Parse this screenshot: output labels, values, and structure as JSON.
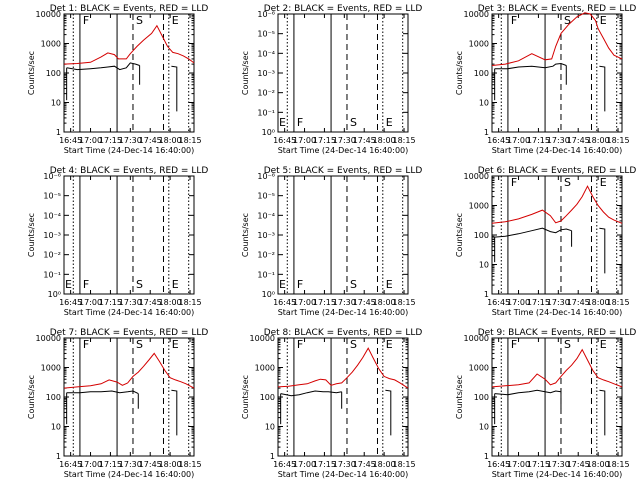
{
  "colors": {
    "events": "#000000",
    "lld": "#d40000",
    "axes": "#000000",
    "background": "#ffffff"
  },
  "xlabel": "Start Time (24-Dec-14 16:40:00)",
  "ylabel": "Counts/sec",
  "x_tick_labels": [
    "16:45",
    "17:00",
    "17:15",
    "17:30",
    "17:45",
    "18:00",
    "18:15"
  ],
  "x_range_minutes": [
    0,
    98
  ],
  "x_ticks_minutes": [
    5,
    20,
    35,
    50,
    65,
    80,
    95
  ],
  "ylim_log": [
    1,
    10000
  ],
  "y_ticks_log": [
    "1",
    "10",
    "100",
    "1000",
    "10000"
  ],
  "y_ticks_empty": [
    "10⁰",
    "10⁻¹",
    "10⁻²",
    "10⁻³",
    "10⁻⁴",
    "10⁻⁵",
    "10⁻⁶"
  ],
  "markers": [
    {
      "minute": 7,
      "style": "dotted",
      "label": ""
    },
    {
      "minute": 12,
      "style": "solid",
      "label": "F"
    },
    {
      "minute": 40,
      "style": "solid",
      "label": ""
    },
    {
      "minute": 52,
      "style": "dashed",
      "label": "S"
    },
    {
      "minute": 75,
      "style": "dashed",
      "label": ""
    },
    {
      "minute": 79,
      "style": "dotted",
      "label": "E"
    },
    {
      "minute": 94,
      "style": "dotted",
      "label": ""
    }
  ],
  "chart_data": [
    {
      "title": "Det 1: BLACK = Events, RED = LLD",
      "type": "line",
      "empty": false,
      "lld_x": [
        0,
        10,
        20,
        28,
        33,
        38,
        41,
        47,
        50,
        55,
        60,
        66,
        70,
        74,
        78,
        82,
        86,
        90,
        94,
        98
      ],
      "lld_y": [
        200,
        210,
        230,
        350,
        480,
        420,
        300,
        300,
        450,
        800,
        1300,
        2200,
        4000,
        1800,
        800,
        500,
        450,
        380,
        300,
        220
      ],
      "events_x": [
        2,
        10,
        20,
        28,
        33,
        38,
        42,
        47,
        50,
        54,
        57
      ],
      "events_y": [
        150,
        130,
        140,
        150,
        160,
        170,
        130,
        150,
        220,
        200,
        180
      ]
    },
    {
      "title": "Det 2: BLACK = Events, RED = LLD",
      "type": "line",
      "empty": true
    },
    {
      "title": "Det 3: BLACK = Events, RED = LLD",
      "type": "line",
      "empty": false,
      "lld_x": [
        0,
        10,
        20,
        30,
        40,
        45,
        48,
        52,
        58,
        64,
        70,
        74,
        78,
        80,
        84,
        88,
        92,
        98
      ],
      "lld_y": [
        180,
        200,
        260,
        450,
        280,
        300,
        800,
        2200,
        4500,
        8000,
        11000,
        10000,
        6000,
        3200,
        1500,
        700,
        400,
        300
      ],
      "events_x": [
        2,
        12,
        20,
        30,
        40,
        46,
        48,
        52,
        56
      ],
      "events_y": [
        140,
        140,
        160,
        170,
        150,
        170,
        200,
        210,
        180
      ]
    },
    {
      "title": "Det 4: BLACK = Events, RED = LLD",
      "type": "line",
      "empty": true
    },
    {
      "title": "Det 5: BLACK = Events, RED = LLD",
      "type": "line",
      "empty": true
    },
    {
      "title": "Det 6: BLACK = Events, RED = LLD",
      "type": "line",
      "empty": false,
      "lld_x": [
        0,
        10,
        20,
        30,
        38,
        44,
        48,
        52,
        56,
        60,
        64,
        68,
        72,
        76,
        80,
        84,
        88,
        92,
        98
      ],
      "lld_y": [
        250,
        280,
        350,
        500,
        700,
        450,
        260,
        300,
        450,
        700,
        1100,
        2000,
        4500,
        2000,
        1000,
        600,
        400,
        320,
        250
      ],
      "events_x": [
        2,
        10,
        20,
        30,
        38,
        44,
        48,
        52,
        56,
        60
      ],
      "events_y": [
        85,
        90,
        110,
        140,
        170,
        130,
        120,
        150,
        160,
        140
      ]
    },
    {
      "title": "Det 7: BLACK = Events, RED = LLD",
      "type": "line",
      "empty": false,
      "lld_x": [
        0,
        10,
        20,
        28,
        34,
        40,
        44,
        48,
        52,
        56,
        60,
        64,
        68,
        72,
        76,
        80,
        84,
        88,
        92,
        98
      ],
      "lld_y": [
        200,
        220,
        240,
        280,
        380,
        320,
        250,
        300,
        500,
        700,
        1100,
        1800,
        3000,
        1600,
        800,
        450,
        380,
        330,
        280,
        200
      ],
      "events_x": [
        2,
        12,
        20,
        28,
        36,
        42,
        48,
        52,
        56
      ],
      "events_y": [
        140,
        140,
        150,
        150,
        160,
        140,
        150,
        160,
        130
      ]
    },
    {
      "title": "Det 8: BLACK = Events, RED = LLD",
      "type": "line",
      "empty": false,
      "lld_x": [
        0,
        8,
        16,
        22,
        28,
        32,
        36,
        40,
        44,
        48,
        52,
        56,
        60,
        64,
        68,
        72,
        76,
        80,
        84,
        88,
        92,
        98
      ],
      "lld_y": [
        220,
        230,
        260,
        280,
        350,
        400,
        380,
        250,
        280,
        300,
        450,
        700,
        1200,
        2200,
        4500,
        2000,
        900,
        500,
        420,
        380,
        300,
        200
      ],
      "events_x": [
        2,
        10,
        16,
        22,
        28,
        34,
        38,
        44,
        48
      ],
      "events_y": [
        130,
        110,
        120,
        140,
        160,
        150,
        150,
        140,
        150
      ]
    },
    {
      "title": "Det 9: BLACK = Events, RED = LLD",
      "type": "line",
      "empty": false,
      "lld_x": [
        0,
        10,
        20,
        28,
        34,
        40,
        44,
        48,
        52,
        56,
        60,
        64,
        68,
        72,
        76,
        80,
        84,
        88,
        92,
        98
      ],
      "lld_y": [
        220,
        240,
        260,
        300,
        600,
        400,
        260,
        300,
        500,
        800,
        1200,
        2000,
        4000,
        1800,
        800,
        450,
        380,
        330,
        280,
        220
      ],
      "events_x": [
        2,
        12,
        20,
        28,
        34,
        40,
        44,
        48,
        52
      ],
      "events_y": [
        130,
        120,
        140,
        150,
        170,
        150,
        140,
        160,
        150
      ]
    }
  ]
}
